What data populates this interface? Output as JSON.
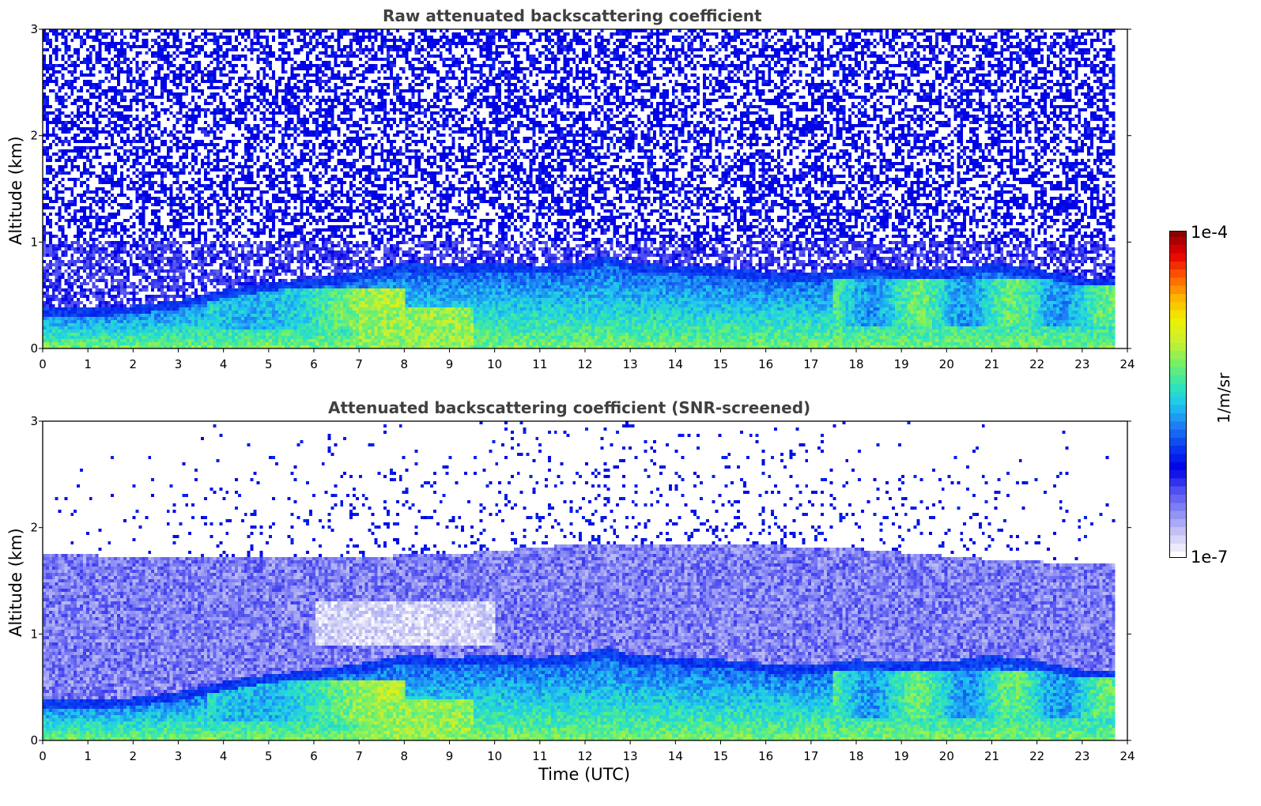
{
  "figure": {
    "colorbar": {
      "max_label": "1e-4",
      "min_label": "1e-7",
      "unit": "1/m/sr",
      "colormap": [
        "#ffffff",
        "#c8c8f5",
        "#8c8cf5",
        "#5050f0",
        "#0000e6",
        "#0a3cf0",
        "#1e7ff5",
        "#1ec8f0",
        "#32e6b4",
        "#78f064",
        "#c8f032",
        "#f0f000",
        "#ffb400",
        "#ff5a00",
        "#e60000",
        "#8c0000"
      ]
    }
  },
  "chart_data": [
    {
      "type": "heatmap",
      "title": "Raw attenuated backscattering coefficient",
      "xlabel": "",
      "ylabel": "Altitude (km)",
      "xlim": [
        0,
        24
      ],
      "ylim": [
        0,
        3
      ],
      "x_ticks": [
        "0",
        "1",
        "2",
        "3",
        "4",
        "5",
        "6",
        "7",
        "8",
        "9",
        "10",
        "11",
        "12",
        "13",
        "14",
        "15",
        "16",
        "17",
        "18",
        "19",
        "20",
        "21",
        "22",
        "23",
        "24"
      ],
      "y_ticks": [
        "0",
        "1",
        "2",
        "3"
      ],
      "data_end_time": 23.7,
      "boundary_layer_top_km": {
        "time": [
          0,
          1,
          2,
          3,
          4,
          5,
          6,
          7,
          8,
          9,
          10,
          11,
          12,
          12.5,
          13,
          14,
          15,
          16,
          17,
          18,
          19,
          20,
          21,
          22,
          23,
          23.7
        ],
        "altitude": [
          0.38,
          0.38,
          0.4,
          0.45,
          0.55,
          0.62,
          0.66,
          0.72,
          0.8,
          0.78,
          0.8,
          0.78,
          0.82,
          0.88,
          0.8,
          0.78,
          0.76,
          0.72,
          0.7,
          0.76,
          0.74,
          0.74,
          0.8,
          0.75,
          0.66,
          0.66
        ]
      },
      "colorbar": "1/m/sr"
    },
    {
      "type": "heatmap",
      "title": "Attenuated backscattering coefficient (SNR-screened)",
      "xlabel": "Time (UTC)",
      "ylabel": "Altitude (km)",
      "xlim": [
        0,
        24
      ],
      "ylim": [
        0,
        3
      ],
      "x_ticks": [
        "0",
        "1",
        "2",
        "3",
        "4",
        "5",
        "6",
        "7",
        "8",
        "9",
        "10",
        "11",
        "12",
        "13",
        "14",
        "15",
        "16",
        "17",
        "18",
        "19",
        "20",
        "21",
        "22",
        "23",
        "24"
      ],
      "y_ticks": [
        "0",
        "1",
        "2",
        "3"
      ],
      "data_end_time": 23.7,
      "residual_layer_top_km": {
        "time": [
          0,
          3,
          6,
          9,
          12,
          15,
          18,
          21,
          23.7
        ],
        "altitude": [
          1.75,
          1.72,
          1.72,
          1.75,
          1.85,
          1.85,
          1.8,
          1.7,
          1.65
        ]
      },
      "colorbar": "1/m/sr"
    }
  ]
}
